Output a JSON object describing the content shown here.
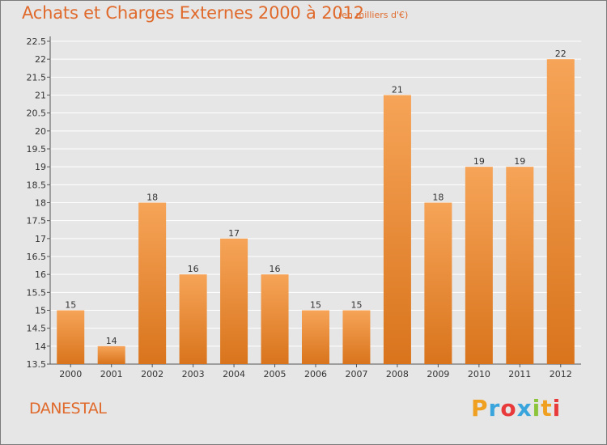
{
  "title": "Achats et Charges Externes 2000 à 2012",
  "subtitle": "(en milliers d'€)",
  "commune": "DANESTAL",
  "brand": {
    "letters": [
      "P",
      "r",
      "o",
      "x",
      "i",
      "t",
      "i"
    ],
    "colors": [
      "#f0a020",
      "#3aa5dc",
      "#e83a3a",
      "#3aa5dc",
      "#8cc43c",
      "#f0a020",
      "#e83a3a"
    ]
  },
  "colors": {
    "accent": "#e06a2c",
    "bar_light": "#f6a458",
    "bar_dark": "#d9741c",
    "background": "#e6e6e6",
    "grid": "#ffffff"
  },
  "chart_data": {
    "type": "bar",
    "categories": [
      "2000",
      "2001",
      "2002",
      "2003",
      "2004",
      "2005",
      "2006",
      "2007",
      "2008",
      "2009",
      "2010",
      "2011",
      "2012"
    ],
    "values": [
      15,
      14,
      18,
      16,
      17,
      16,
      15,
      15,
      21,
      18,
      19,
      19,
      22
    ],
    "data_labels": [
      "15",
      "14",
      "18",
      "16",
      "17",
      "16",
      "15",
      "15",
      "21",
      "18",
      "19",
      "19",
      "22"
    ],
    "ylim": [
      13.5,
      22.5
    ],
    "yticks": [
      13.5,
      14,
      14.5,
      15,
      15.5,
      16,
      16.5,
      17,
      17.5,
      18,
      18.5,
      19,
      19.5,
      20,
      20.5,
      21,
      21.5,
      22,
      22.5
    ],
    "ytick_labels": [
      "13.5",
      "14",
      "14.5",
      "15",
      "15.5",
      "16",
      "16.5",
      "17",
      "17.5",
      "18",
      "18.5",
      "19",
      "19.5",
      "20",
      "20.5",
      "21",
      "21.5",
      "22",
      "22.5"
    ],
    "grid": true
  }
}
